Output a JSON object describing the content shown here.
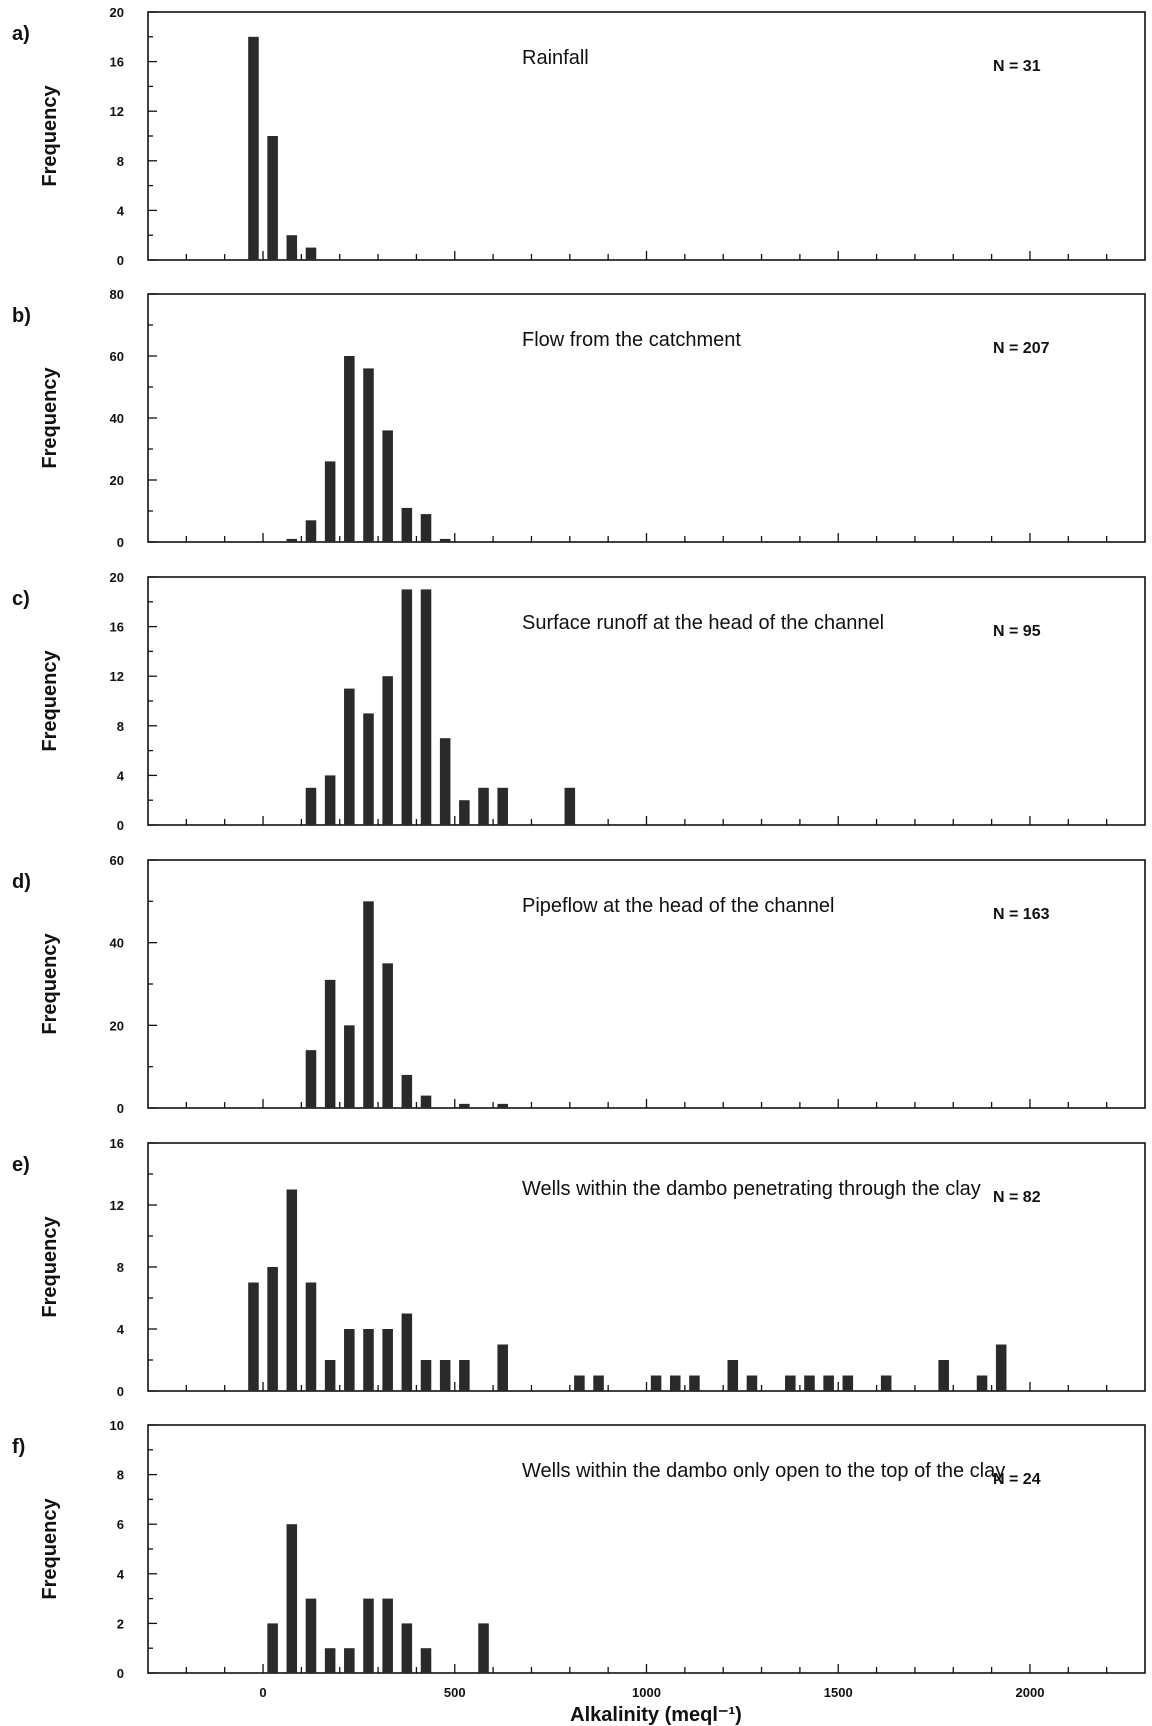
{
  "chart_data": [
    {
      "type": "bar",
      "panel_label": "a)",
      "title": "Rainfall",
      "n_label": "N = 31",
      "ylabel": "Frequency",
      "ylim": [
        0,
        20
      ],
      "yticks": [
        0,
        4,
        8,
        12,
        16,
        20
      ],
      "x": [
        0,
        50,
        100,
        150
      ],
      "values": [
        18,
        10,
        2,
        1
      ]
    },
    {
      "type": "bar",
      "panel_label": "b)",
      "title": "Flow from the catchment",
      "n_label": "N = 207",
      "ylabel": "Frequency",
      "ylim": [
        0,
        80
      ],
      "yticks": [
        0,
        20,
        40,
        60,
        80
      ],
      "x": [
        100,
        150,
        200,
        250,
        300,
        350,
        400,
        450,
        500
      ],
      "values": [
        1,
        7,
        26,
        60,
        56,
        36,
        11,
        9,
        1
      ]
    },
    {
      "type": "bar",
      "panel_label": "c)",
      "title": "Surface runoff at the head of the channel",
      "n_label": "N = 95",
      "ylabel": "Frequency",
      "ylim": [
        0,
        20
      ],
      "yticks": [
        0,
        4,
        8,
        12,
        16,
        20
      ],
      "x": [
        150,
        200,
        250,
        300,
        350,
        400,
        450,
        500,
        550,
        600,
        650,
        825
      ],
      "values": [
        3,
        4,
        11,
        9,
        12,
        19,
        19,
        7,
        2,
        3,
        3,
        3
      ]
    },
    {
      "type": "bar",
      "panel_label": "d)",
      "title": "Pipeflow at the head of the channel",
      "n_label": "N = 163",
      "ylabel": "Frequency",
      "ylim": [
        0,
        60
      ],
      "yticks": [
        0,
        20,
        40,
        60
      ],
      "x": [
        150,
        200,
        250,
        300,
        350,
        400,
        450,
        550,
        650
      ],
      "values": [
        14,
        31,
        20,
        50,
        35,
        8,
        3,
        1,
        1
      ]
    },
    {
      "type": "bar",
      "panel_label": "e)",
      "title": "Wells within the dambo penetrating through the clay",
      "n_label": "N = 82",
      "ylabel": "Frequency",
      "ylim": [
        0,
        16
      ],
      "yticks": [
        0,
        4,
        8,
        12,
        16
      ],
      "x": [
        0,
        50,
        100,
        150,
        200,
        250,
        300,
        350,
        400,
        450,
        500,
        550,
        650,
        850,
        900,
        1050,
        1100,
        1150,
        1250,
        1300,
        1400,
        1450,
        1500,
        1550,
        1650,
        1800,
        1900,
        1950
      ],
      "values": [
        7,
        8,
        13,
        7,
        2,
        4,
        4,
        4,
        5,
        2,
        2,
        2,
        3,
        1,
        1,
        1,
        1,
        1,
        2,
        1,
        1,
        1,
        1,
        1,
        1,
        2,
        1,
        3
      ]
    },
    {
      "type": "bar",
      "panel_label": "f)",
      "title": "Wells within the dambo only open to the top of the clay",
      "n_label": "N = 24",
      "ylabel": "Frequency",
      "ylim": [
        0,
        10
      ],
      "yticks": [
        0,
        2,
        4,
        6,
        8,
        10
      ],
      "x": [
        50,
        100,
        150,
        200,
        250,
        300,
        350,
        400,
        450,
        600
      ],
      "values": [
        2,
        6,
        3,
        1,
        1,
        3,
        3,
        2,
        1,
        2
      ]
    }
  ],
  "x_axis": {
    "label": "Alkalinity (meql⁻¹)",
    "ticks": [
      0,
      500,
      1000,
      1500,
      2000
    ],
    "tick_labels": [
      "0",
      "500",
      "1000",
      "1500",
      "2000"
    ],
    "range": [
      -300,
      2300
    ]
  }
}
